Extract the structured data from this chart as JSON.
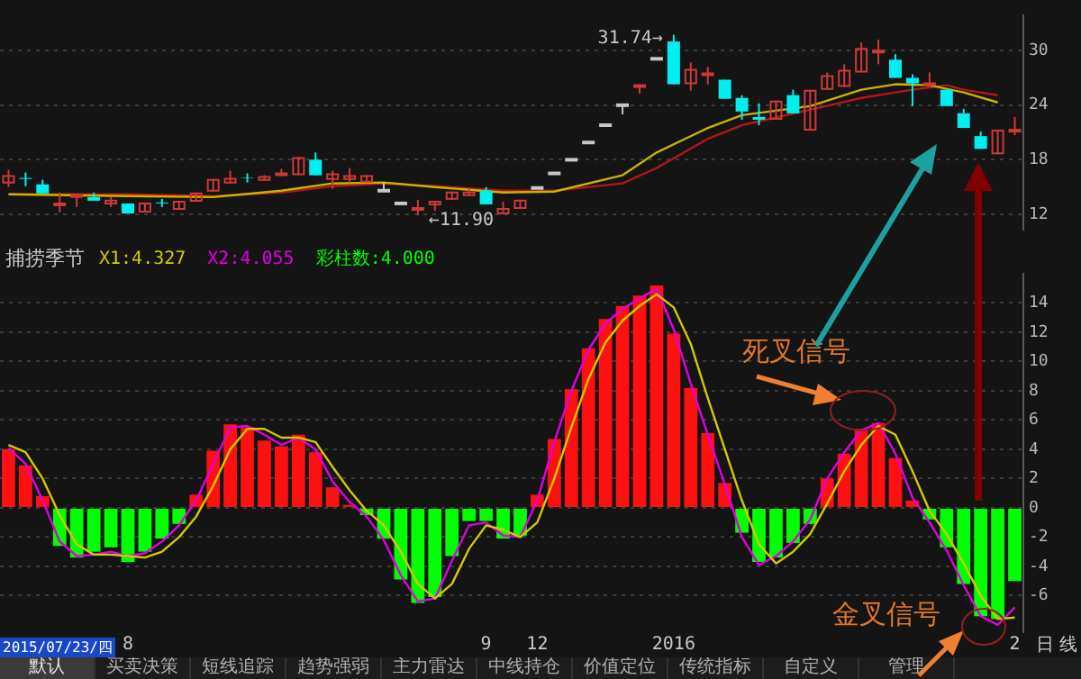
{
  "chart_data": [
    {
      "type": "candlestick",
      "categories": [
        null,
        null,
        null,
        null,
        null,
        null,
        null,
        null,
        null,
        null,
        null,
        null,
        null,
        null,
        null,
        null,
        null,
        null,
        null,
        null,
        null,
        null,
        null,
        null,
        null,
        null,
        null,
        null,
        null,
        null,
        null,
        null,
        null,
        null,
        null,
        null,
        null,
        null,
        null,
        null,
        null,
        null,
        null,
        null,
        null,
        null,
        null,
        null,
        null,
        null,
        null,
        null,
        null,
        null,
        null,
        null,
        null,
        null,
        null,
        null
      ],
      "ohlc": [
        [
          15.4,
          16.9,
          15.0,
          16.3
        ],
        [
          16.0,
          16.6,
          15.1,
          15.9
        ],
        [
          15.3,
          15.8,
          14.3,
          14.3
        ],
        [
          12.9,
          14.4,
          12.2,
          13.3
        ],
        [
          13.8,
          14.2,
          12.8,
          14.2
        ],
        [
          13.9,
          14.4,
          13.5,
          13.5
        ],
        [
          13.1,
          13.9,
          12.8,
          13.6
        ],
        [
          13.2,
          13.2,
          12.1,
          12.1
        ],
        [
          12.2,
          13.3,
          12.2,
          13.3
        ],
        [
          13.3,
          13.7,
          12.8,
          13.2
        ],
        [
          12.5,
          13.5,
          12.5,
          13.5
        ],
        [
          13.4,
          14.4,
          13.4,
          14.4
        ],
        [
          14.5,
          15.9,
          14.5,
          15.9
        ],
        [
          15.4,
          16.8,
          15.4,
          16.0
        ],
        [
          16.05,
          16.5,
          15.5,
          16.0
        ],
        [
          15.7,
          16.3,
          15.7,
          16.2
        ],
        [
          16.2,
          17.0,
          16.2,
          16.6
        ],
        [
          16.3,
          18.3,
          16.3,
          18.3
        ],
        [
          18.0,
          18.8,
          16.3,
          16.3
        ],
        [
          15.8,
          16.8,
          14.8,
          16.5
        ],
        [
          15.8,
          17.1,
          15.5,
          16.3
        ],
        [
          15.5,
          16.3,
          15.5,
          16.3
        ],
        [
          14.6,
          15.5,
          14.5,
          14.6
        ],
        [
          13.2,
          13.2,
          13.2,
          13.2
        ],
        [
          12.4,
          13.6,
          11.9,
          12.8
        ],
        [
          13.0,
          13.5,
          12.4,
          13.5
        ],
        [
          13.6,
          14.5,
          13.6,
          14.5
        ],
        [
          14.0,
          14.8,
          14.0,
          14.5
        ],
        [
          14.6,
          15.0,
          13.1,
          13.1
        ],
        [
          12.0,
          13.4,
          12.0,
          12.7
        ],
        [
          12.6,
          13.6,
          12.6,
          13.6
        ],
        [
          14.9,
          14.9,
          14.9,
          14.9
        ],
        [
          16.5,
          16.5,
          16.5,
          16.5
        ],
        [
          18.0,
          18.0,
          18.0,
          18.0
        ],
        [
          19.9,
          19.9,
          19.9,
          19.9
        ],
        [
          21.8,
          21.8,
          21.8,
          21.8
        ],
        [
          24.0,
          24.0,
          23.0,
          24.0
        ],
        [
          26.2,
          26.3,
          25.3,
          26.3
        ],
        [
          29.1,
          29.1,
          29.1,
          29.1
        ],
        [
          31.0,
          31.74,
          26.3,
          26.3
        ],
        [
          26.3,
          28.7,
          25.6,
          28.0
        ],
        [
          27.5,
          28.2,
          26.3,
          27.6
        ],
        [
          26.8,
          26.8,
          24.7,
          24.7
        ],
        [
          24.8,
          25.1,
          22.4,
          23.3
        ],
        [
          22.7,
          24.2,
          21.8,
          22.4
        ],
        [
          22.4,
          24.5,
          22.4,
          24.5
        ],
        [
          25.1,
          25.7,
          23.1,
          23.1
        ],
        [
          21.2,
          25.7,
          21.2,
          25.7
        ],
        [
          25.7,
          27.6,
          25.7,
          27.3
        ],
        [
          26.0,
          28.5,
          26.0,
          27.9
        ],
        [
          27.6,
          30.9,
          27.6,
          30.3
        ],
        [
          30.0,
          31.2,
          28.5,
          30.1
        ],
        [
          29.0,
          29.6,
          27.0,
          27.0
        ],
        [
          27.0,
          27.4,
          23.9,
          26.4
        ],
        [
          26.1,
          27.6,
          26.1,
          26.5
        ],
        [
          25.7,
          25.7,
          23.9,
          23.9
        ],
        [
          23.1,
          23.6,
          21.5,
          21.5
        ],
        [
          20.6,
          21.1,
          19.2,
          19.2
        ],
        [
          18.6,
          21.3,
          18.6,
          21.3
        ],
        [
          21.3,
          22.7,
          20.7,
          21.4
        ]
      ],
      "colors": [
        "#d03838",
        "#00f0f0",
        "#00f0f0",
        "#d03838",
        "#d03838",
        "#00f0f0",
        "#d03838",
        "#00f0f0",
        "#d03838",
        "#00f0f0",
        "#d03838",
        "#d03838",
        "#d03838",
        "#d03838",
        "#00f0f0",
        "#d03838",
        "#d03838",
        "#d03838",
        "#00f0f0",
        "#d03838",
        "#d03838",
        "#d03838",
        "#c8c8c8",
        "#c8c8c8",
        "#d03838",
        "#d03838",
        "#d03838",
        "#d03838",
        "#00f0f0",
        "#d03838",
        "#d03838",
        "#c8c8c8",
        "#c8c8c8",
        "#c8c8c8",
        "#c8c8c8",
        "#c8c8c8",
        "#c8c8c8",
        "#d03838",
        "#c8c8c8",
        "#00f0f0",
        "#d03838",
        "#d03838",
        "#00f0f0",
        "#00f0f0",
        "#00f0f0",
        "#d03838",
        "#00f0f0",
        "#d03838",
        "#d03838",
        "#d03838",
        "#d03838",
        "#d03838",
        "#00f0f0",
        "#00f0f0",
        "#d03838",
        "#00f0f0",
        "#00f0f0",
        "#00f0f0",
        "#d03838",
        "#d03838"
      ],
      "series": [
        {
          "type": "line",
          "color": "#c8b400",
          "values": [
            14.2,
            null,
            null,
            null,
            null,
            null,
            null,
            14.0,
            null,
            null,
            null,
            null,
            13.9,
            null,
            null,
            null,
            14.6,
            null,
            null,
            15.4,
            null,
            null,
            15.5,
            null,
            null,
            15.0,
            null,
            null,
            null,
            14.4,
            null,
            null,
            14.5,
            null,
            null,
            null,
            16.3,
            null,
            18.8,
            null,
            null,
            21.5,
            null,
            22.9,
            null,
            null,
            null,
            23.9,
            null,
            null,
            25.7,
            null,
            26.3,
            null,
            26.2,
            null,
            25.4,
            null,
            24.3,
            null
          ]
        },
        {
          "type": "line",
          "color": "#b01818",
          "values": [
            14.2,
            null,
            null,
            null,
            null,
            null,
            null,
            14.2,
            null,
            null,
            null,
            null,
            14.0,
            null,
            null,
            null,
            14.4,
            null,
            null,
            15.1,
            null,
            null,
            15.4,
            null,
            null,
            15.1,
            null,
            null,
            null,
            14.6,
            null,
            null,
            14.6,
            null,
            null,
            null,
            15.4,
            null,
            17.1,
            null,
            null,
            20.3,
            null,
            21.8,
            null,
            null,
            null,
            23.5,
            null,
            null,
            24.8,
            null,
            null,
            25.7,
            null,
            26.2,
            25.7,
            null,
            25.1,
            null
          ]
        }
      ],
      "ylim": [
        10.3,
        33.9
      ],
      "yticks": [
        12,
        18,
        24,
        30
      ],
      "grid": "y",
      "tick_labels": "y",
      "annotations": [
        "31.74→",
        "←11.90"
      ]
    },
    {
      "type": "bar",
      "title": "捕捞季节",
      "categories": [
        null,
        null,
        null,
        null,
        null,
        null,
        null,
        "8",
        null,
        null,
        null,
        null,
        null,
        null,
        null,
        null,
        null,
        null,
        null,
        null,
        null,
        null,
        null,
        null,
        null,
        null,
        null,
        null,
        "9",
        null,
        null,
        "12",
        null,
        null,
        null,
        null,
        null,
        null,
        null,
        "2016",
        null,
        null,
        null,
        null,
        null,
        null,
        null,
        null,
        null,
        null,
        null,
        null,
        null,
        null,
        null,
        null,
        null,
        null,
        null,
        "2"
      ],
      "series": [
        {
          "name": "X1:4.327",
          "type": "line",
          "color": "#d4c800",
          "values": [
            4.3,
            3.8,
            2.0,
            -0.5,
            -2.5,
            -3.2,
            -3.2,
            -3.3,
            -3.4,
            -3.0,
            -2.0,
            -0.6,
            1.5,
            4.0,
            5.4,
            5.4,
            4.8,
            4.8,
            4.5,
            2.8,
            1.2,
            -0.2,
            -1.2,
            -3.0,
            -5.2,
            -6.2,
            -5.2,
            -2.8,
            -1.2,
            -1.5,
            -2.0,
            -1.0,
            2.0,
            5.5,
            8.8,
            11.3,
            12.8,
            13.8,
            14.6,
            13.7,
            11.2,
            7.5,
            4.0,
            0.5,
            -2.5,
            -3.8,
            -3.0,
            -1.8,
            0.3,
            2.5,
            4.3,
            5.6,
            5.0,
            2.5,
            -0.2,
            -1.8,
            -3.8,
            -6.0,
            -7.6,
            -7.5
          ]
        },
        {
          "name": "X2:4.055",
          "type": "line",
          "color": "#e000e0",
          "values": [
            4.1,
            3.0,
            0.5,
            -2.3,
            -3.3,
            -3.2,
            -3.0,
            -3.3,
            -3.1,
            -2.3,
            -1.2,
            0.5,
            3.0,
            5.5,
            5.6,
            5.0,
            4.3,
            4.8,
            4.0,
            1.8,
            0.4,
            -0.6,
            -2.2,
            -4.6,
            -6.4,
            -6.2,
            -3.6,
            -1.2,
            -1.0,
            -1.9,
            -2.0,
            0.5,
            4.5,
            8.0,
            10.8,
            12.6,
            13.6,
            14.3,
            15.0,
            12.2,
            8.5,
            5.0,
            1.6,
            -2.0,
            -3.9,
            -3.3,
            -2.3,
            -0.8,
            2.0,
            3.8,
            5.3,
            5.8,
            3.7,
            0.7,
            -1.0,
            -2.9,
            -5.3,
            -7.4,
            -8.0,
            -6.8
          ]
        },
        {
          "name": "彩柱数:4.000",
          "color": "#00ff00",
          "values": [
            4.0,
            2.9,
            0.8,
            -2.6,
            -3.4,
            -3.0,
            -2.7,
            -3.7,
            -3.0,
            -2.1,
            -1.1,
            0.9,
            3.9,
            5.7,
            5.5,
            4.6,
            4.2,
            5.0,
            3.8,
            1.4,
            0.2,
            -0.5,
            -2.1,
            -4.9,
            -6.5,
            -6.1,
            -3.3,
            -0.9,
            -0.9,
            -2.1,
            -1.9,
            0.9,
            4.7,
            8.1,
            10.9,
            12.9,
            13.8,
            14.5,
            15.2,
            11.9,
            8.2,
            5.1,
            1.7,
            -1.7,
            -3.7,
            -3.4,
            -2.4,
            -1.1,
            2.0,
            3.7,
            5.4,
            5.8,
            3.4,
            0.5,
            -0.8,
            -2.7,
            -5.2,
            -7.4,
            -7.6,
            -5.0
          ],
          "colors": [
            "#ff1010",
            "#ff1010",
            "#ff1010",
            "#00ff00",
            "#00ff00",
            "#00ff00",
            "#00ff00",
            "#00ff00",
            "#00ff00",
            "#00ff00",
            "#00ff00",
            "#ff1010",
            "#ff1010",
            "#ff1010",
            "#ff1010",
            "#ff1010",
            "#ff1010",
            "#ff1010",
            "#ff1010",
            "#ff1010",
            "#ff1010",
            "#00ff00",
            "#00ff00",
            "#00ff00",
            "#00ff00",
            "#00ff00",
            "#00ff00",
            "#00ff00",
            "#00ff00",
            "#00ff00",
            "#00ff00",
            "#ff1010",
            "#ff1010",
            "#ff1010",
            "#ff1010",
            "#ff1010",
            "#ff1010",
            "#ff1010",
            "#ff1010",
            "#ff1010",
            "#ff1010",
            "#ff1010",
            "#ff1010",
            "#00ff00",
            "#00ff00",
            "#00ff00",
            "#00ff00",
            "#00ff00",
            "#ff1010",
            "#ff1010",
            "#ff1010",
            "#ff1010",
            "#ff1010",
            "#ff1010",
            "#00ff00",
            "#00ff00",
            "#00ff00",
            "#00ff00",
            "#00ff00",
            "#00ff00"
          ]
        }
      ],
      "ylim": [
        -8.5,
        16
      ],
      "yticks": [
        -6,
        -4,
        -2,
        0,
        2,
        4,
        6,
        8,
        10,
        12,
        14
      ],
      "grid": "y",
      "annotations": [
        "死叉信号",
        "金叉信号",
        "2015/07/23/四",
        "默认",
        "买卖决策",
        "短线追踪",
        "趋势强弱",
        "主力雷达",
        "中线持仓",
        "价值定位",
        "传统指标",
        "自定义",
        "管理",
        "日",
        "线"
      ]
    }
  ]
}
